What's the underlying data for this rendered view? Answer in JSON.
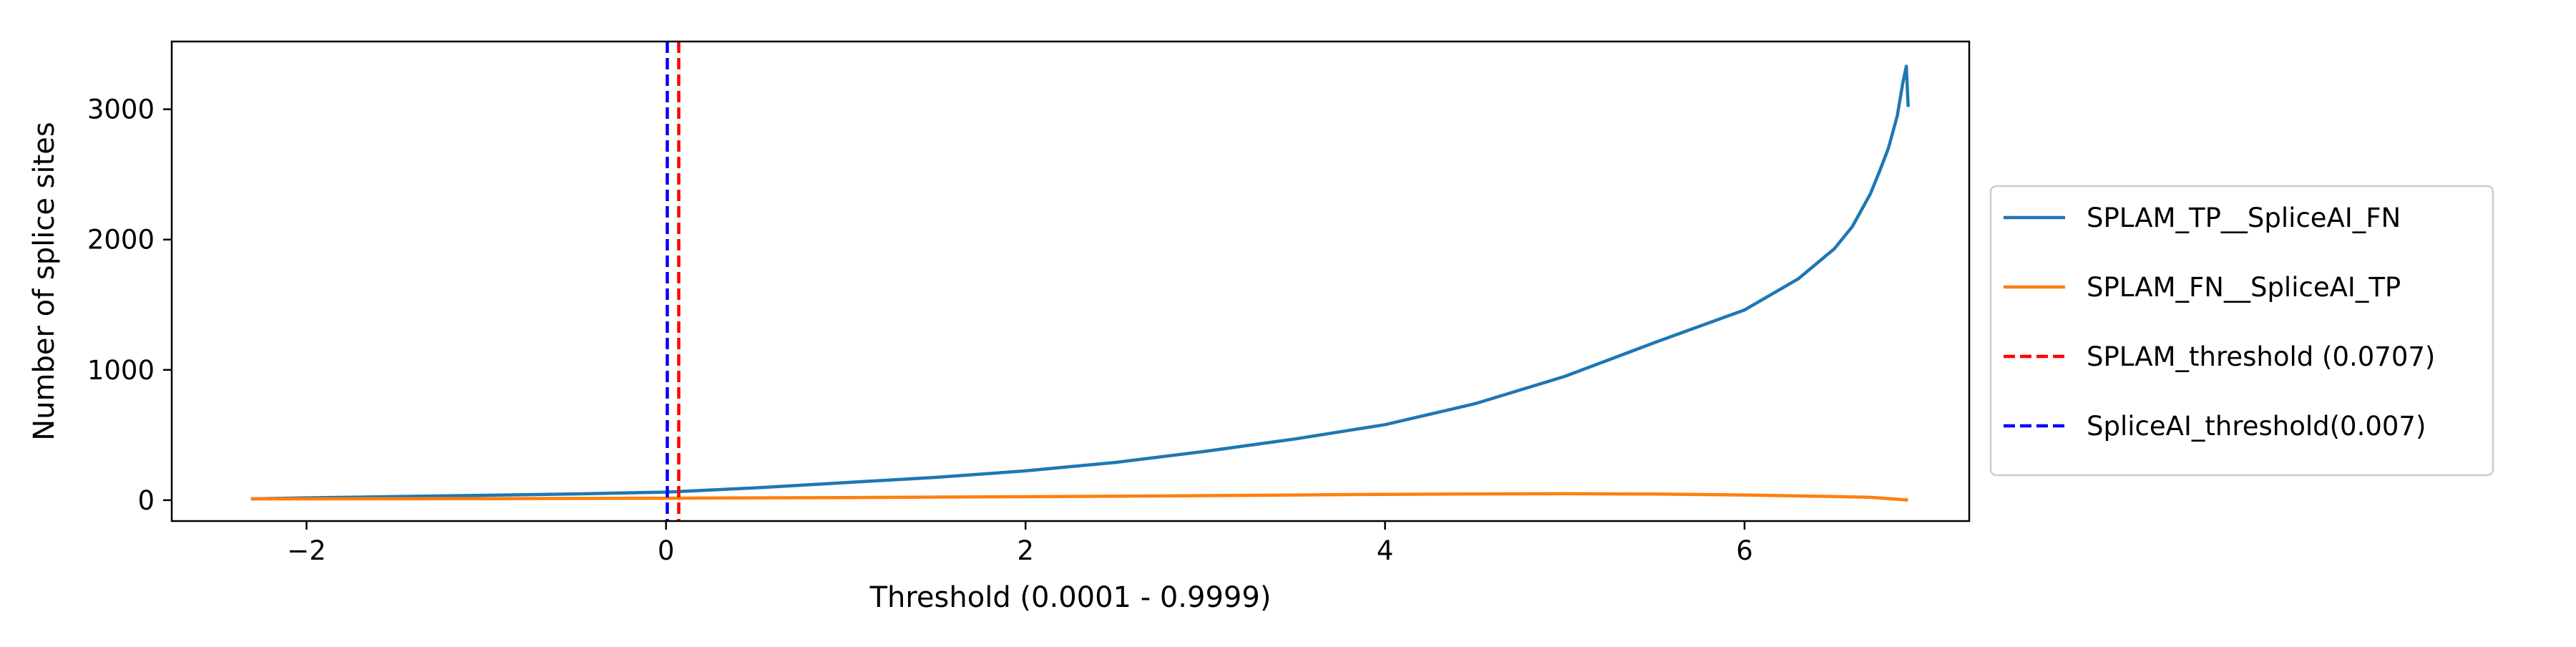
{
  "chart_data": {
    "type": "line",
    "title": "",
    "xlabel": "Threshold (0.0001 - 0.9999)",
    "ylabel": "Number of splice sites",
    "xlim": [
      -2.75,
      7.25
    ],
    "ylim": [
      -160,
      3520
    ],
    "xticks": [
      -2,
      0,
      2,
      4,
      6
    ],
    "yticks": [
      0,
      1000,
      2000,
      3000
    ],
    "xtick_labels": [
      "−2",
      "0",
      "2",
      "4",
      "6"
    ],
    "ytick_labels": [
      "0",
      "1000",
      "2000",
      "3000"
    ],
    "grid": false,
    "legend": {
      "placement": "outside-right"
    },
    "series": [
      {
        "name": "SPLAM_TP__SpliceAI_FN",
        "color": "#1f77b4",
        "style": "solid",
        "x": [
          -2.3,
          -2.0,
          -1.5,
          -1.0,
          -0.5,
          0.0,
          0.5,
          1.0,
          1.5,
          2.0,
          2.5,
          3.0,
          3.5,
          4.0,
          4.5,
          5.0,
          5.5,
          6.0,
          6.3,
          6.5,
          6.6,
          6.7,
          6.75,
          6.8,
          6.85,
          6.88,
          6.9,
          6.91
        ],
        "y": [
          10,
          18,
          28,
          38,
          48,
          62,
          95,
          135,
          175,
          225,
          290,
          375,
          470,
          580,
          740,
          950,
          1210,
          1460,
          1700,
          1930,
          2100,
          2350,
          2520,
          2700,
          2950,
          3200,
          3330,
          3030
        ]
      },
      {
        "name": "SPLAM_FN__SpliceAI_TP",
        "color": "#ff7f0e",
        "style": "solid",
        "x": [
          -2.3,
          -2.0,
          -1.0,
          0.0,
          1.0,
          2.0,
          3.0,
          4.0,
          4.5,
          5.0,
          5.5,
          6.0,
          6.5,
          6.7,
          6.9
        ],
        "y": [
          10,
          10,
          12,
          15,
          20,
          27,
          35,
          45,
          48,
          50,
          47,
          40,
          28,
          22,
          2
        ]
      }
    ],
    "vlines": [
      {
        "name": "SPLAM_threshold (0.0707)",
        "x": 0.0707,
        "color": "#ff0000",
        "style": "dashed"
      },
      {
        "name": "SpliceAI_threshold(0.007)",
        "x": 0.007,
        "color": "#0000ff",
        "style": "dashed"
      }
    ]
  }
}
